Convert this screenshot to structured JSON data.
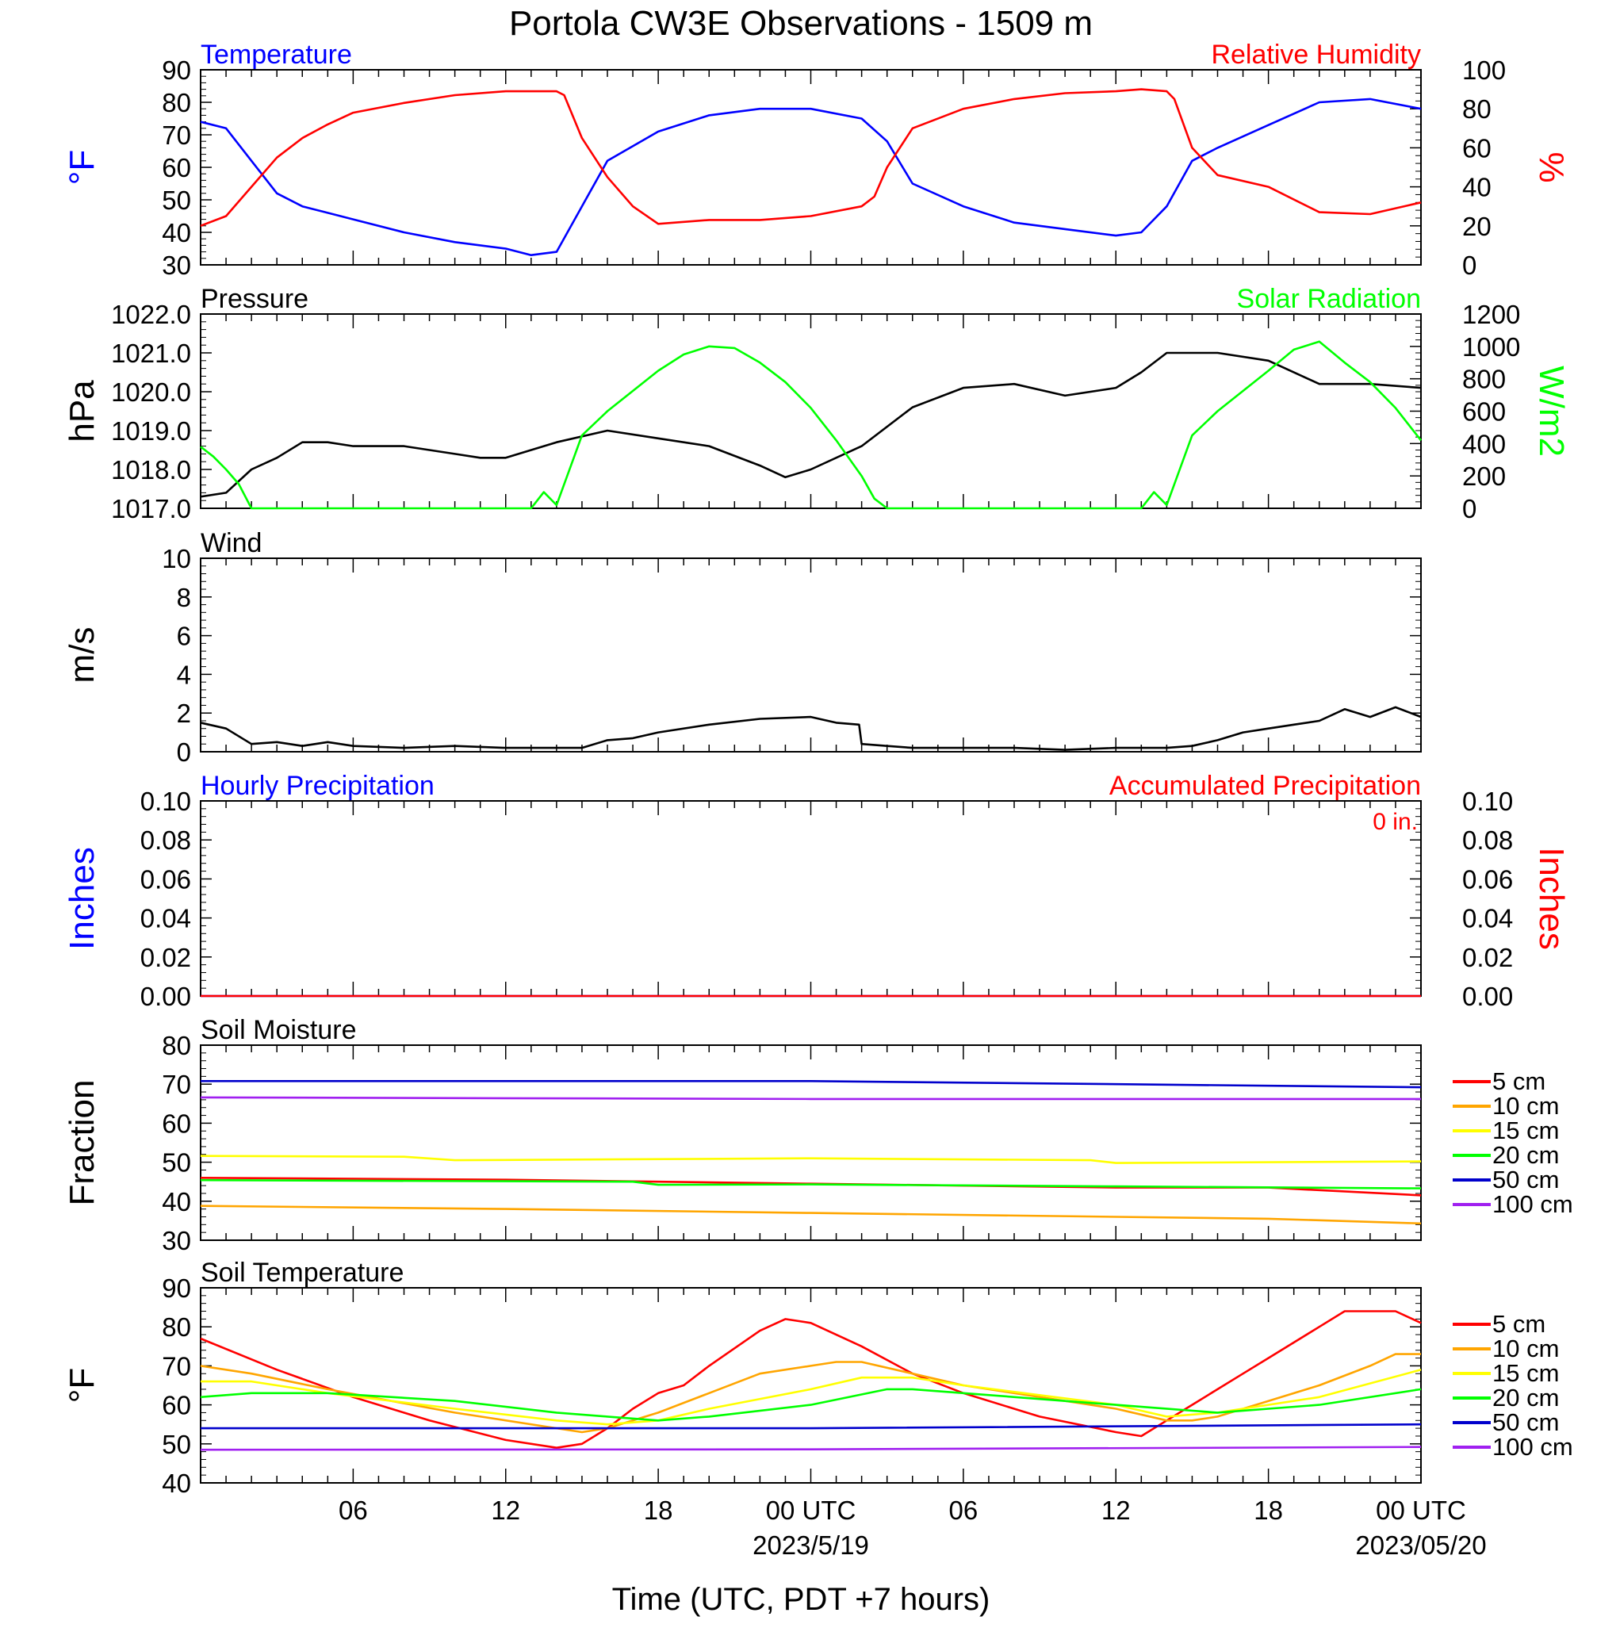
{
  "title": "Portola CW3E Observations - 1509 m",
  "colors": {
    "blue": "#0000ff",
    "red": "#ff0000",
    "green": "#00ff00",
    "black": "#000000",
    "orange": "#ffa500",
    "yellow": "#ffff00",
    "navy": "#0000cc",
    "purple": "#a020f0"
  },
  "time_axis": {
    "hours_start": 0,
    "hours_end": 48,
    "tick_labels": [
      {
        "h": 6,
        "label": "06"
      },
      {
        "h": 12,
        "label": "12"
      },
      {
        "h": 18,
        "label": "18"
      },
      {
        "h": 24,
        "label": "00 UTC"
      },
      {
        "h": 30,
        "label": "06"
      },
      {
        "h": 36,
        "label": "12"
      },
      {
        "h": 42,
        "label": "18"
      },
      {
        "h": 48,
        "label": "00 UTC"
      }
    ],
    "date_labels": [
      {
        "h": 24,
        "label": "2023/5/19"
      },
      {
        "h": 48,
        "label": "2023/05/20"
      }
    ],
    "xlabel": "Time (UTC, PDT +7 hours)"
  },
  "chart_data": [
    {
      "type": "line",
      "name_left": "Temperature",
      "name_right": "Relative Humidity",
      "ylabel_left": "°F",
      "ylabel_right": "%",
      "ylim_left": [
        30,
        90
      ],
      "ylim_right": [
        0,
        100
      ],
      "yticks_left": [
        "30",
        "40",
        "50",
        "60",
        "70",
        "80",
        "90"
      ],
      "yticks_right": [
        "0",
        "20",
        "40",
        "60",
        "80",
        "100"
      ],
      "series": [
        {
          "name": "Temperature",
          "axis": "left",
          "color": "#0000ff",
          "x": [
            0,
            1,
            2,
            3,
            4,
            5,
            6,
            8,
            10,
            12,
            13,
            14,
            15,
            16,
            18,
            20,
            22,
            24,
            26,
            27,
            28,
            30,
            32,
            34,
            36,
            37,
            38,
            39,
            40,
            42,
            44,
            46,
            48
          ],
          "y": [
            74,
            72,
            62,
            52,
            48,
            46,
            44,
            40,
            37,
            35,
            33,
            34,
            48,
            62,
            71,
            76,
            78,
            78,
            75,
            68,
            55,
            48,
            43,
            41,
            39,
            40,
            48,
            62,
            66,
            73,
            80,
            81,
            78
          ]
        },
        {
          "name": "Relative Humidity",
          "axis": "right",
          "color": "#ff0000",
          "x": [
            0,
            1,
            2,
            3,
            4,
            5,
            6,
            8,
            10,
            12,
            13,
            14,
            14.3,
            15,
            16,
            17,
            18,
            20,
            22,
            24,
            26,
            26.5,
            27,
            28,
            30,
            32,
            34,
            36,
            37,
            38,
            38.3,
            39,
            40,
            42,
            44,
            46,
            48
          ],
          "y": [
            20,
            25,
            40,
            55,
            65,
            72,
            78,
            83,
            87,
            89,
            89,
            89,
            87,
            65,
            45,
            30,
            21,
            23,
            23,
            25,
            30,
            35,
            50,
            70,
            80,
            85,
            88,
            89,
            90,
            89,
            85,
            60,
            46,
            40,
            27,
            26,
            32
          ]
        }
      ]
    },
    {
      "type": "line",
      "name_left": "Pressure",
      "name_right": "Solar Radiation",
      "ylabel_left": "hPa",
      "ylabel_right": "W/m2",
      "ylim_left": [
        1017,
        1022
      ],
      "ylim_right": [
        0,
        1200
      ],
      "yticks_left": [
        "1017.0",
        "1018.0",
        "1019.0",
        "1020.0",
        "1021.0",
        "1022.0"
      ],
      "yticks_right": [
        "0",
        "200",
        "400",
        "600",
        "800",
        "1000",
        "1200"
      ],
      "series": [
        {
          "name": "Pressure",
          "axis": "left",
          "color": "#000000",
          "x": [
            0,
            1,
            2,
            3,
            4,
            5,
            6,
            8,
            10,
            11,
            12,
            14,
            16,
            18,
            20,
            22,
            23,
            24,
            26,
            28,
            30,
            32,
            34,
            36,
            37,
            38,
            40,
            42,
            44,
            46,
            48
          ],
          "y": [
            1017.3,
            1017.4,
            1018.0,
            1018.3,
            1018.7,
            1018.7,
            1018.6,
            1018.6,
            1018.4,
            1018.3,
            1018.3,
            1018.7,
            1019.0,
            1018.8,
            1018.6,
            1018.1,
            1017.8,
            1018.0,
            1018.6,
            1019.6,
            1020.1,
            1020.2,
            1019.9,
            1020.1,
            1020.5,
            1021.0,
            1021.0,
            1020.8,
            1020.2,
            1020.2,
            1020.1
          ]
        },
        {
          "name": "Solar Radiation",
          "axis": "right",
          "color": "#00ff00",
          "x": [
            0,
            0.5,
            1,
            1.5,
            2,
            3,
            5,
            8,
            10,
            12,
            13,
            13.5,
            14,
            15,
            16,
            18,
            19,
            20,
            21,
            22,
            23,
            24,
            25,
            26,
            26.5,
            27,
            28,
            30,
            34,
            36,
            37,
            37.5,
            38,
            39,
            40,
            42,
            43,
            44,
            45,
            46,
            47,
            48
          ],
          "y": [
            380,
            320,
            240,
            150,
            0,
            0,
            0,
            0,
            0,
            0,
            0,
            100,
            20,
            450,
            600,
            850,
            950,
            1000,
            990,
            900,
            780,
            620,
            420,
            200,
            60,
            0,
            0,
            0,
            0,
            0,
            0,
            100,
            20,
            450,
            600,
            850,
            980,
            1030,
            900,
            780,
            620,
            420
          ]
        }
      ]
    },
    {
      "type": "line",
      "name_left": "Wind",
      "ylabel_left": "m/s",
      "ylim_left": [
        0,
        10
      ],
      "yticks_left": [
        "0",
        "2",
        "4",
        "6",
        "8",
        "10"
      ],
      "series": [
        {
          "name": "Wind",
          "axis": "left",
          "color": "#000000",
          "x": [
            0,
            1,
            2,
            3,
            4,
            5,
            6,
            8,
            10,
            12,
            14,
            15,
            16,
            17,
            18,
            20,
            22,
            24,
            25,
            25.9,
            26,
            27,
            28,
            30,
            32,
            34,
            36,
            38,
            39,
            40,
            41,
            42,
            43,
            44,
            45,
            46,
            47,
            48
          ],
          "y": [
            1.5,
            1.2,
            0.4,
            0.5,
            0.3,
            0.5,
            0.3,
            0.2,
            0.3,
            0.2,
            0.2,
            0.2,
            0.6,
            0.7,
            1.0,
            1.4,
            1.7,
            1.8,
            1.5,
            1.4,
            0.4,
            0.3,
            0.2,
            0.2,
            0.2,
            0.1,
            0.2,
            0.2,
            0.3,
            0.6,
            1.0,
            1.2,
            1.4,
            1.6,
            2.2,
            1.8,
            2.3,
            1.8
          ]
        }
      ]
    },
    {
      "type": "line",
      "name_left": "Hourly Precipitation",
      "name_right": "Accumulated Precipitation",
      "ylabel_left": "Inches",
      "ylabel_right": "Inches",
      "annotation": "0 in.",
      "ylim_left": [
        0,
        0.1
      ],
      "ylim_right": [
        0,
        0.1
      ],
      "yticks_left": [
        "0.00",
        "0.02",
        "0.04",
        "0.06",
        "0.08",
        "0.10"
      ],
      "yticks_right": [
        "0.00",
        "0.02",
        "0.04",
        "0.06",
        "0.08",
        "0.10"
      ],
      "series": [
        {
          "name": "Hourly Precipitation",
          "axis": "left",
          "color": "#0000ff",
          "x": [
            0,
            48
          ],
          "y": [
            0,
            0
          ]
        },
        {
          "name": "Accumulated Precipitation",
          "axis": "right",
          "color": "#ff0000",
          "x": [
            0,
            48
          ],
          "y": [
            0,
            0
          ]
        }
      ]
    },
    {
      "type": "line",
      "name_left": "Soil Moisture",
      "ylabel_left": "Fraction",
      "ylim_left": [
        30,
        80
      ],
      "yticks_left": [
        "30",
        "40",
        "50",
        "60",
        "70",
        "80"
      ],
      "legend": [
        "5 cm",
        "10 cm",
        "15 cm",
        "20 cm",
        "50 cm",
        "100 cm"
      ],
      "series": [
        {
          "name": "5 cm",
          "color": "#ff0000",
          "x": [
            0,
            12,
            24,
            36,
            42,
            48
          ],
          "y": [
            46,
            45.5,
            44.5,
            43.5,
            43.5,
            41.5
          ]
        },
        {
          "name": "10 cm",
          "color": "#ffa500",
          "x": [
            0,
            12,
            24,
            36,
            42,
            48
          ],
          "y": [
            38.8,
            38,
            37,
            36,
            35.5,
            34.3
          ]
        },
        {
          "name": "15 cm",
          "color": "#ffff00",
          "x": [
            0,
            8,
            10,
            24,
            35,
            36,
            48
          ],
          "y": [
            51.6,
            51.4,
            50.5,
            51,
            50.5,
            49.8,
            50.2
          ]
        },
        {
          "name": "20 cm",
          "color": "#00ff00",
          "x": [
            0,
            17,
            18,
            24,
            36,
            48
          ],
          "y": [
            45.4,
            45,
            44.2,
            44.3,
            43.8,
            43.3
          ]
        },
        {
          "name": "50 cm",
          "color": "#0000cc",
          "x": [
            0,
            24,
            48
          ],
          "y": [
            70.8,
            70.8,
            69.2
          ]
        },
        {
          "name": "100 cm",
          "color": "#a020f0",
          "x": [
            0,
            24,
            48
          ],
          "y": [
            66.6,
            66.2,
            66.2
          ]
        }
      ]
    },
    {
      "type": "line",
      "name_left": "Soil Temperature",
      "ylabel_left": "°F",
      "ylim_left": [
        40,
        90
      ],
      "yticks_left": [
        "40",
        "50",
        "60",
        "70",
        "80",
        "90"
      ],
      "legend": [
        "5 cm",
        "10 cm",
        "15 cm",
        "20 cm",
        "50 cm",
        "100 cm"
      ],
      "series": [
        {
          "name": "5 cm",
          "color": "#ff0000",
          "x": [
            0,
            3,
            6,
            9,
            12,
            14,
            15,
            16,
            17,
            18,
            19,
            20,
            22,
            23,
            24,
            26,
            28,
            30,
            33,
            36,
            37,
            38,
            39,
            40,
            41,
            42,
            44,
            45,
            46,
            47,
            48
          ],
          "y": [
            77,
            69,
            62,
            56,
            51,
            49,
            50,
            54,
            59,
            63,
            65,
            70,
            79,
            82,
            81,
            75,
            68,
            63,
            57,
            53,
            52,
            56,
            60,
            64,
            68,
            72,
            80,
            84,
            84,
            84,
            81
          ]
        },
        {
          "name": "10 cm",
          "color": "#ffa500",
          "x": [
            0,
            2,
            5,
            10,
            14,
            15,
            16,
            18,
            20,
            22,
            24,
            25,
            26,
            28,
            30,
            36,
            38,
            39,
            40,
            42,
            44,
            46,
            47,
            48
          ],
          "y": [
            70,
            68,
            64,
            58,
            54,
            53,
            54,
            58,
            63,
            68,
            70,
            71,
            71,
            68,
            65,
            59,
            56,
            56,
            57,
            61,
            65,
            70,
            73,
            73
          ]
        },
        {
          "name": "15 cm",
          "color": "#ffff00",
          "x": [
            0,
            2,
            5,
            10,
            14,
            16,
            18,
            20,
            24,
            26,
            28,
            30,
            36,
            38,
            40,
            44,
            48
          ],
          "y": [
            66,
            66,
            63,
            59,
            56,
            55,
            56,
            59,
            64,
            67,
            67,
            65,
            60,
            57,
            58,
            62,
            69
          ]
        },
        {
          "name": "20 cm",
          "color": "#00ff00",
          "x": [
            0,
            2,
            5,
            10,
            14,
            16,
            18,
            20,
            24,
            27,
            28,
            30,
            36,
            40,
            44,
            48
          ],
          "y": [
            62,
            63,
            63,
            61,
            58,
            57,
            56,
            57,
            60,
            64,
            64,
            63,
            60,
            58,
            60,
            64
          ]
        },
        {
          "name": "50 cm",
          "color": "#0000cc",
          "x": [
            0,
            24,
            48
          ],
          "y": [
            54,
            54,
            55
          ]
        },
        {
          "name": "100 cm",
          "color": "#a020f0",
          "x": [
            0,
            24,
            48
          ],
          "y": [
            48.5,
            48.6,
            49.2
          ]
        }
      ]
    }
  ]
}
